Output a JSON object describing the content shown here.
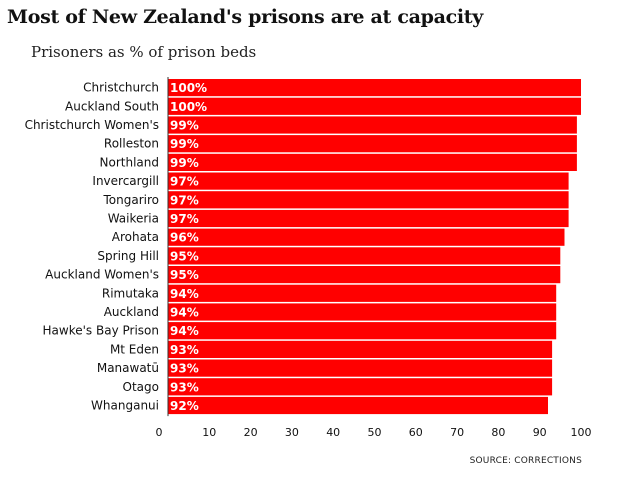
{
  "title": "Most of New Zealand's prisons are at capacity",
  "subtitle": "Prisoners as % of prison beds",
  "source": "SOURCE: CORRECTIONS",
  "colors": {
    "bar": "#ff0000",
    "axis": "#333333"
  },
  "chart_data": {
    "type": "bar",
    "orientation": "horizontal",
    "title": "Most of New Zealand's prisons are at capacity",
    "subtitle": "Prisoners as % of prison beds",
    "xlabel": "",
    "ylabel": "",
    "xlim": [
      0,
      100
    ],
    "xticks": [
      0,
      10,
      20,
      30,
      40,
      50,
      60,
      70,
      80,
      90,
      100
    ],
    "categories": [
      "Christchurch",
      "Auckland South",
      "Christchurch Women's",
      "Rolleston",
      "Northland",
      "Invercargill",
      "Tongariro",
      "Waikeria",
      "Arohata",
      "Spring Hill",
      "Auckland Women's",
      "Rimutaka",
      "Auckland",
      "Hawke's Bay Prison",
      "Mt Eden",
      "Manawatū",
      "Otago",
      "Whanganui"
    ],
    "values": [
      100,
      100,
      99,
      99,
      99,
      97,
      97,
      97,
      96,
      95,
      95,
      94,
      94,
      94,
      93,
      93,
      93,
      92
    ],
    "value_labels": [
      "100%",
      "100%",
      "99%",
      "99%",
      "99%",
      "97%",
      "97%",
      "97%",
      "96%",
      "95%",
      "95%",
      "94%",
      "94%",
      "94%",
      "93%",
      "93%",
      "93%",
      "92%"
    ]
  }
}
